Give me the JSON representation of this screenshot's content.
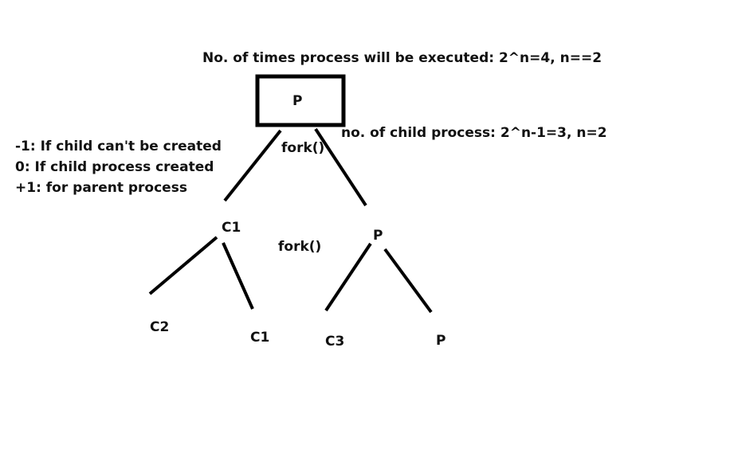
{
  "annotations": {
    "executions": "No. of times process will be executed: 2^n=4, n==2",
    "children": "no. of child process: 2^n-1=3, n=2"
  },
  "legend": {
    "items": [
      "-1: If child can't be created",
      "0: If child process created",
      "+1: for parent process"
    ]
  },
  "nodes": {
    "root": "P",
    "c1": "C1",
    "p2": "P",
    "c2": "C2",
    "c1b": "C1",
    "c3": "C3",
    "p3": "P"
  },
  "calls": {
    "fork1": "fork()",
    "fork2": "fork()"
  },
  "colors": {
    "stroke": "#000000",
    "text": "#111111"
  }
}
